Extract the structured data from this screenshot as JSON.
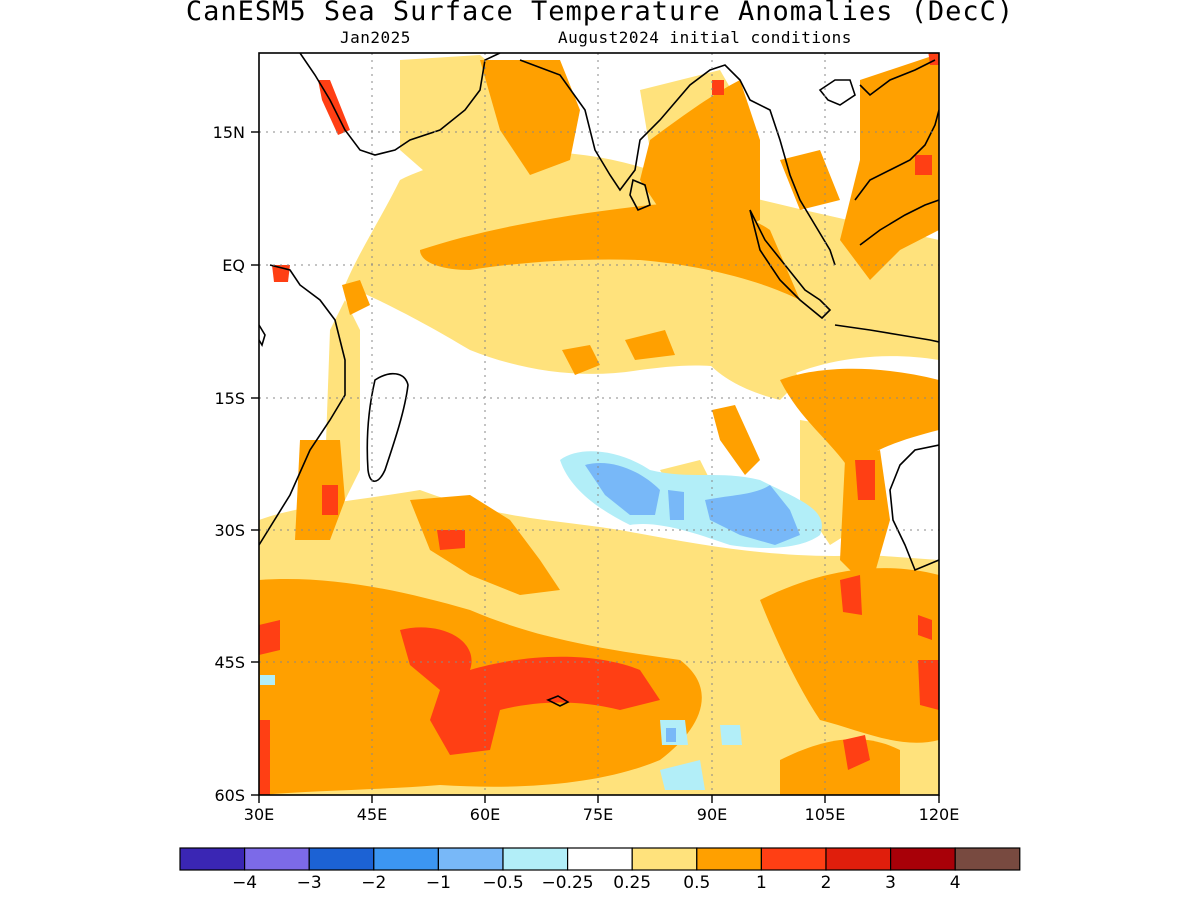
{
  "title": "CanESM5 Sea Surface Temperature Anomalies (DecC)",
  "subtitle_left": "Jan2025",
  "subtitle_right": "August2024 initial conditions",
  "map": {
    "lon_range": [
      30,
      120
    ],
    "lat_range": [
      -60,
      24
    ],
    "x_ticks": [
      {
        "value": 30,
        "label": "30E"
      },
      {
        "value": 45,
        "label": "45E"
      },
      {
        "value": 60,
        "label": "60E"
      },
      {
        "value": 75,
        "label": "75E"
      },
      {
        "value": 90,
        "label": "90E"
      },
      {
        "value": 105,
        "label": "105E"
      },
      {
        "value": 120,
        "label": "120E"
      }
    ],
    "y_ticks": [
      {
        "value": 15,
        "label": "15N"
      },
      {
        "value": 0,
        "label": "EQ"
      },
      {
        "value": -15,
        "label": "15S"
      },
      {
        "value": -30,
        "label": "30S"
      },
      {
        "value": -45,
        "label": "45S"
      },
      {
        "value": -60,
        "label": "60S"
      }
    ],
    "grid": "dotted"
  },
  "colorbar": {
    "colors": [
      "#3a26b4",
      "#7c6ae8",
      "#1c62d4",
      "#3c96f2",
      "#78b8f8",
      "#b2eef8",
      "#ffffff",
      "#ffe27c",
      "#ffa000",
      "#ff3f14",
      "#e01e0c",
      "#a80008",
      "#784a40"
    ],
    "labels": [
      "−4",
      "−3",
      "−2",
      "−1",
      "−0.5",
      "−0.25",
      "0.25",
      "0.5",
      "1",
      "2",
      "3",
      "4"
    ]
  }
}
